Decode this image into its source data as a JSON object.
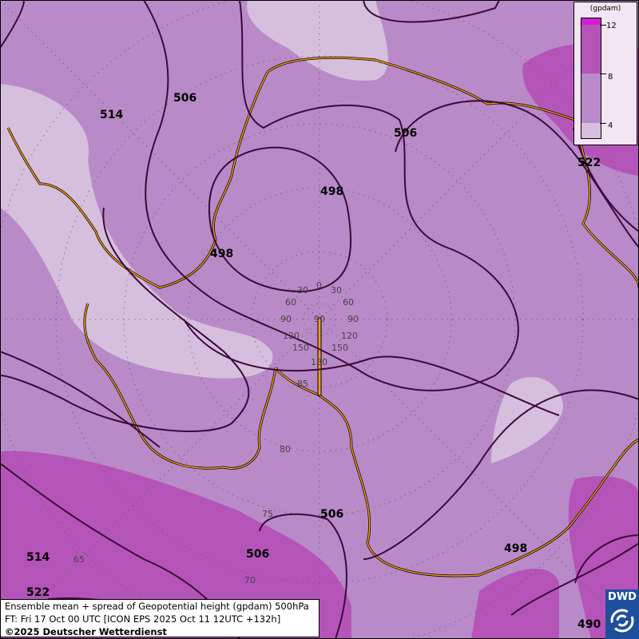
{
  "map": {
    "contour_labels": [
      {
        "value": "514"
      },
      {
        "value": "506"
      },
      {
        "value": "506"
      },
      {
        "value": "498"
      },
      {
        "value": "498"
      },
      {
        "value": "522"
      },
      {
        "value": "506"
      },
      {
        "value": "506"
      },
      {
        "value": "514"
      },
      {
        "value": "522"
      },
      {
        "value": "498"
      },
      {
        "value": "490"
      }
    ],
    "latitude_labels": [
      "85",
      "80",
      "75",
      "70",
      "65"
    ],
    "longitude_labels": [
      "0",
      "30",
      "30",
      "60",
      "60",
      "90",
      "90",
      "120",
      "120",
      "150",
      "150",
      "180",
      "90"
    ]
  },
  "legend": {
    "unit": "(gpdam)",
    "ticks": [
      "12",
      "8",
      "4"
    ],
    "colors": {
      "above_12": "#d41ed4",
      "8_12": "#b554b8",
      "4_8": "#b98ac8",
      "below_4": "#d6bfdc"
    }
  },
  "caption": {
    "line1": "Ensemble mean + spread of Geopotential height (gpdam) 500hPa",
    "line2": "FT: Fri 17 Oct 00 UTC [ICON EPS 2025 Oct 11 12UTC +132h]",
    "copyright": "©2025 Deutscher Wetterdienst"
  },
  "logo": {
    "text": "DWD"
  }
}
